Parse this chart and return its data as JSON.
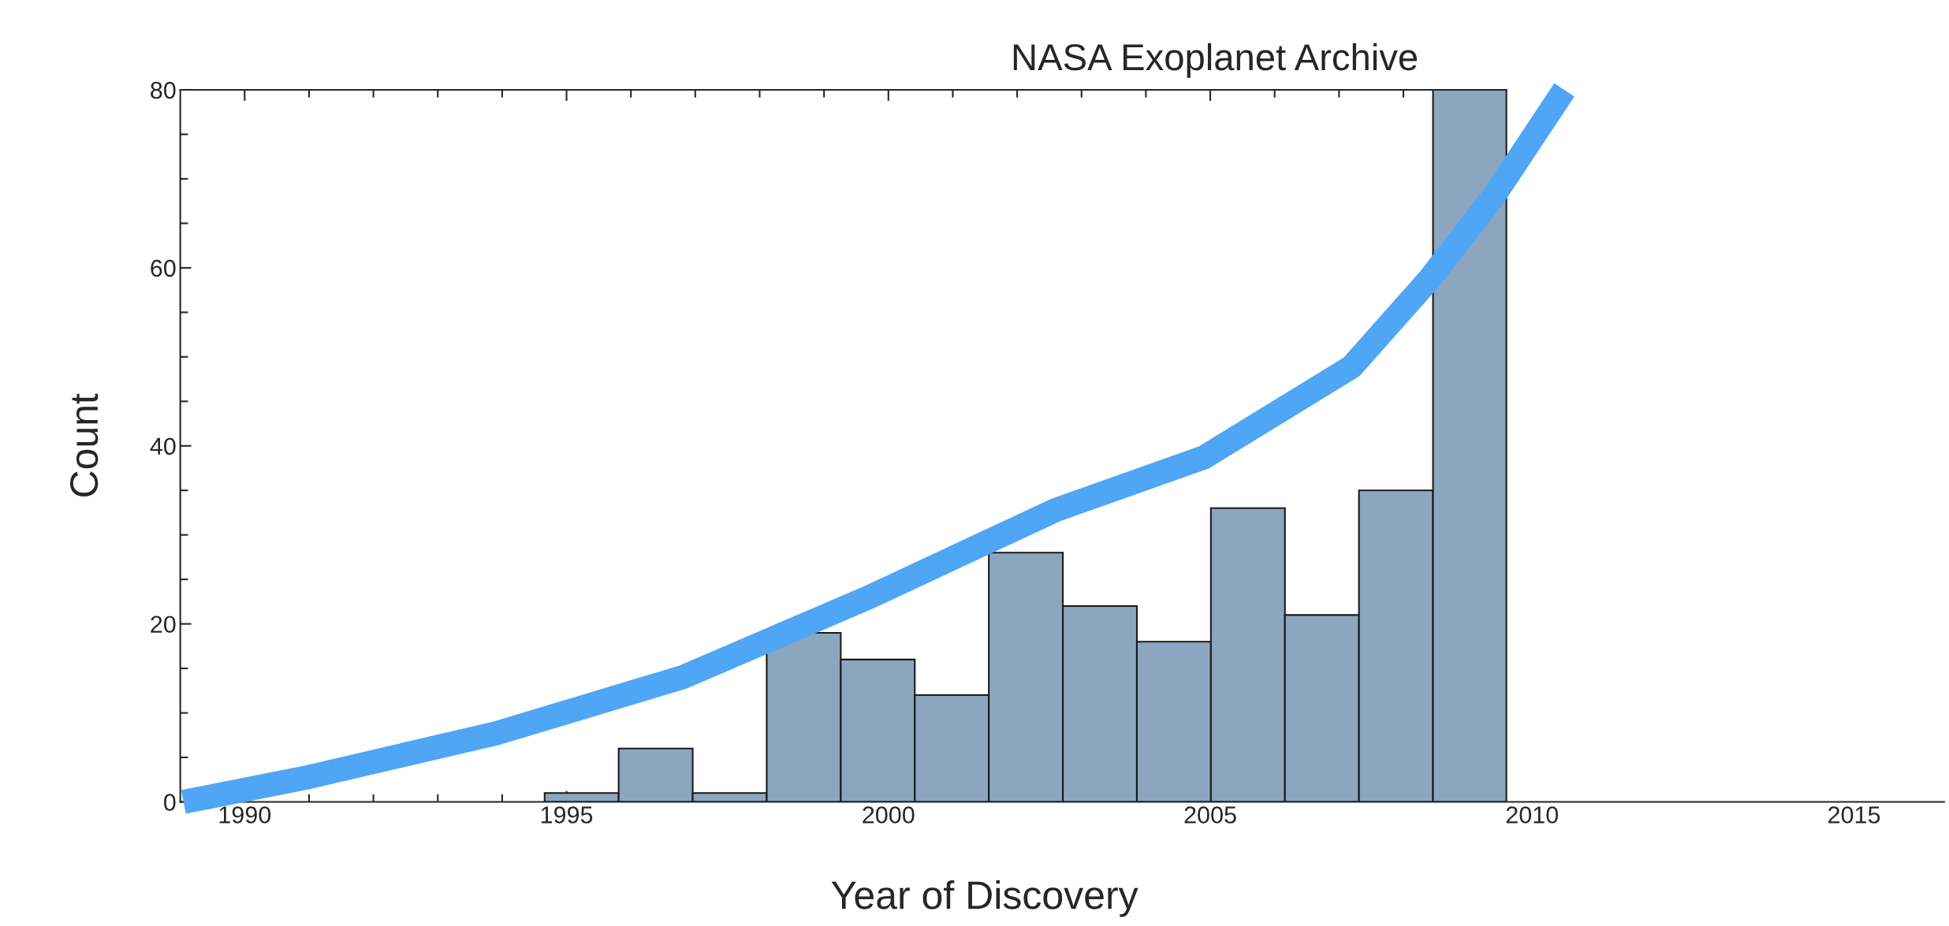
{
  "chart_data": {
    "type": "histogram",
    "title": "NASA Exoplanet Archive",
    "xlabel": "Year of Discovery",
    "ylabel": "Count",
    "bins": [
      1994.66,
      1995.81,
      1996.96,
      1998.11,
      1999.26,
      2000.41,
      2001.56,
      2002.71,
      2003.86,
      2005.01,
      2006.16,
      2007.31,
      2008.46,
      2009.6
    ],
    "values": [
      1,
      6,
      1,
      19,
      16,
      12,
      28,
      22,
      18,
      33,
      21,
      35,
      80
    ],
    "color": "#8ca6bf",
    "series": [
      {
        "type": "line",
        "color": "#4ea6f5",
        "x": [
          1989.05,
          1991.0,
          1993.9,
          1996.8,
          1999.7,
          2002.6,
          2004.9,
          2007.2,
          2008.4,
          2009.4,
          2010.5
        ],
        "values": [
          0,
          2.8,
          7.7,
          14,
          23,
          32.8,
          38.7,
          48.9,
          58.7,
          68,
          80
        ]
      }
    ],
    "xlim": [
      1989,
      2016.4
    ],
    "ylim": [
      0,
      80
    ],
    "xticks": [
      1990,
      {
        "value": 1991,
        "label": null
      },
      {
        "value": 1992,
        "label": null
      },
      {
        "value": 1993,
        "label": null
      },
      {
        "value": 1994,
        "label": null
      },
      1995,
      {
        "value": 1996,
        "label": null
      },
      {
        "value": 1997,
        "label": null
      },
      {
        "value": 1998,
        "label": null
      },
      {
        "value": 1999,
        "label": null
      },
      2000,
      {
        "value": 2001,
        "label": null
      },
      {
        "value": 2002,
        "label": null
      },
      {
        "value": 2003,
        "label": null
      },
      {
        "value": 2004,
        "label": null
      },
      2005,
      {
        "value": 2006,
        "label": null
      },
      {
        "value": 2007,
        "label": null
      },
      {
        "value": 2008,
        "label": null
      },
      {
        "value": 2009,
        "label": null
      },
      2010,
      2015
    ],
    "yticks": [
      0,
      {
        "value": 5,
        "label": null
      },
      {
        "value": 10,
        "label": null
      },
      {
        "value": 15,
        "label": null
      },
      20,
      {
        "value": 25,
        "label": null
      },
      {
        "value": 30,
        "label": null
      },
      {
        "value": 35,
        "label": null
      },
      40,
      {
        "value": 45,
        "label": null
      },
      {
        "value": 50,
        "label": null
      },
      {
        "value": 55,
        "label": null
      },
      60,
      {
        "value": 65,
        "label": null
      },
      {
        "value": 70,
        "label": null
      },
      {
        "value": 75,
        "label": null
      },
      80
    ],
    "grid": false,
    "legend": false
  }
}
